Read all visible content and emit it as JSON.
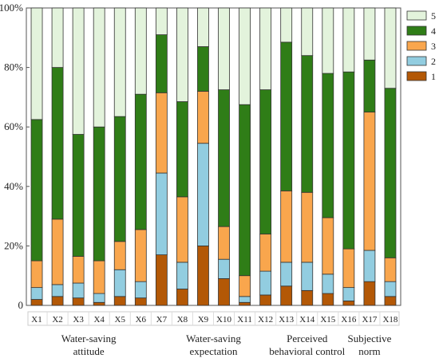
{
  "chart_data": {
    "type": "bar",
    "stacked": true,
    "categories": [
      "X1",
      "X2",
      "X3",
      "X4",
      "X5",
      "X6",
      "X7",
      "X8",
      "X9",
      "X10",
      "X11",
      "X12",
      "X13",
      "X14",
      "X15",
      "X16",
      "X17",
      "X18"
    ],
    "ylim": [
      0,
      100
    ],
    "yticks": [
      "0",
      "20%",
      "40%",
      "60%",
      "80%",
      "100%"
    ],
    "series": [
      {
        "name": "1",
        "color": "#b35806",
        "values": [
          2,
          3,
          2.5,
          1,
          3,
          2.5,
          17,
          5.5,
          20,
          9,
          1,
          3.5,
          6.5,
          5,
          4,
          1.5,
          8,
          3
        ]
      },
      {
        "name": "2",
        "color": "#92cde0",
        "values": [
          4,
          4,
          5,
          3,
          9,
          5.5,
          27.5,
          9,
          34.5,
          6.5,
          2,
          8,
          8,
          9.5,
          6.5,
          4.5,
          10.5,
          5
        ]
      },
      {
        "name": "3",
        "color": "#f9a64d",
        "values": [
          9,
          22,
          9,
          11,
          9.5,
          17.5,
          27,
          22,
          17.5,
          11,
          7,
          12.5,
          24,
          23.5,
          19,
          13,
          46.5,
          8
        ]
      },
      {
        "name": "4",
        "color": "#2f7d17",
        "values": [
          47.5,
          51,
          41,
          45,
          42,
          45.5,
          19.5,
          32,
          15,
          46,
          57.5,
          48.5,
          50,
          46,
          48.5,
          59.5,
          17.5,
          57
        ]
      },
      {
        "name": "5",
        "color": "#e3f3dc",
        "values": [
          37.5,
          20,
          42.5,
          40,
          36.5,
          29,
          9,
          31.5,
          13,
          27.5,
          32.5,
          27.5,
          11.5,
          16,
          22,
          21.5,
          17.5,
          27
        ]
      }
    ],
    "legend_position": "top-right",
    "group_labels": [
      {
        "lines": [
          "Water-saving",
          "attitude"
        ],
        "from": 0,
        "to": 5
      },
      {
        "lines": [
          "Water-saving",
          "expectation"
        ],
        "from": 6,
        "to": 11
      },
      {
        "lines": [
          "Perceived",
          "behavioral control"
        ],
        "from": 12,
        "to": 14
      },
      {
        "lines": [
          "Subjective",
          "norm"
        ],
        "from": 15,
        "to": 17
      }
    ],
    "grid": false
  }
}
